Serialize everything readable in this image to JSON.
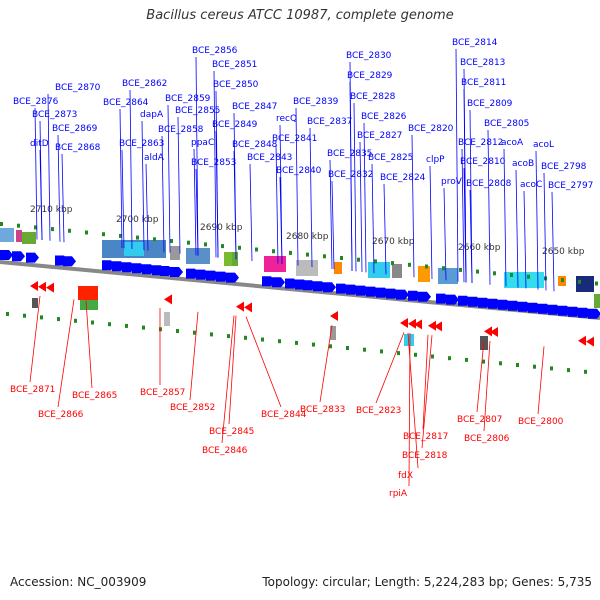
{
  "title": "Bacillus cereus ATCC 10987, complete genome",
  "footer": {
    "accession": "Accession: NC_003909",
    "summary": "Topology: circular; Length: 5,224,283 bp; Genes: 5,735"
  },
  "colors": {
    "forward": "#0000ff",
    "reverse": "#ff0000",
    "backbone": "#888888",
    "ruler": "#228822",
    "ruler_text": "#333333"
  },
  "ruler": [
    "2710 kbp",
    "2700 kbp",
    "2690 kbp",
    "2680 kbp",
    "2670 kbp",
    "2660 kbp",
    "2650 kbp"
  ],
  "forward_labels": [
    "BCE_2876",
    "BCE_2870",
    "BCE_2873",
    "BCE_2869",
    "ditD",
    "BCE_2868",
    "BCE_2862",
    "BCE_2864",
    "dapA",
    "BCE_2863",
    "aldA",
    "BCE_2859",
    "BCE_2855",
    "BCE_2858",
    "ppaC",
    "BCE_2856",
    "BCE_2851",
    "BCE_2850",
    "BCE_2849",
    "BCE_2847",
    "BCE_2848",
    "BCE_2853",
    "BCE_2843",
    "BCE_2841",
    "BCE_2840",
    "BCE_2839",
    "recQ",
    "BCE_2837",
    "BCE_2830",
    "BCE_2829",
    "BCE_2828",
    "BCE_2826",
    "BCE_2827",
    "BCE_2835",
    "BCE_2832",
    "BCE_2825",
    "BCE_2824",
    "BCE_2820",
    "clpP",
    "proV",
    "BCE_2814",
    "BCE_2813",
    "BCE_2811",
    "BCE_2809",
    "BCE_2812",
    "BCE_2810",
    "BCE_2808",
    "BCE_2805",
    "acoA",
    "acoB",
    "acoC",
    "acoL",
    "BCE_2798",
    "BCE_2797"
  ],
  "reverse_labels": [
    "BCE_2871",
    "BCE_2866",
    "BCE_2865",
    "BCE_2857",
    "BCE_2852",
    "BCE_2845",
    "BCE_2846",
    "BCE_2844",
    "BCE_2833",
    "BCE_2823",
    "fdX",
    "rpiA",
    "BCE_2817",
    "BCE_2818",
    "BCE_2807",
    "BCE_2806",
    "BCE_2800"
  ]
}
